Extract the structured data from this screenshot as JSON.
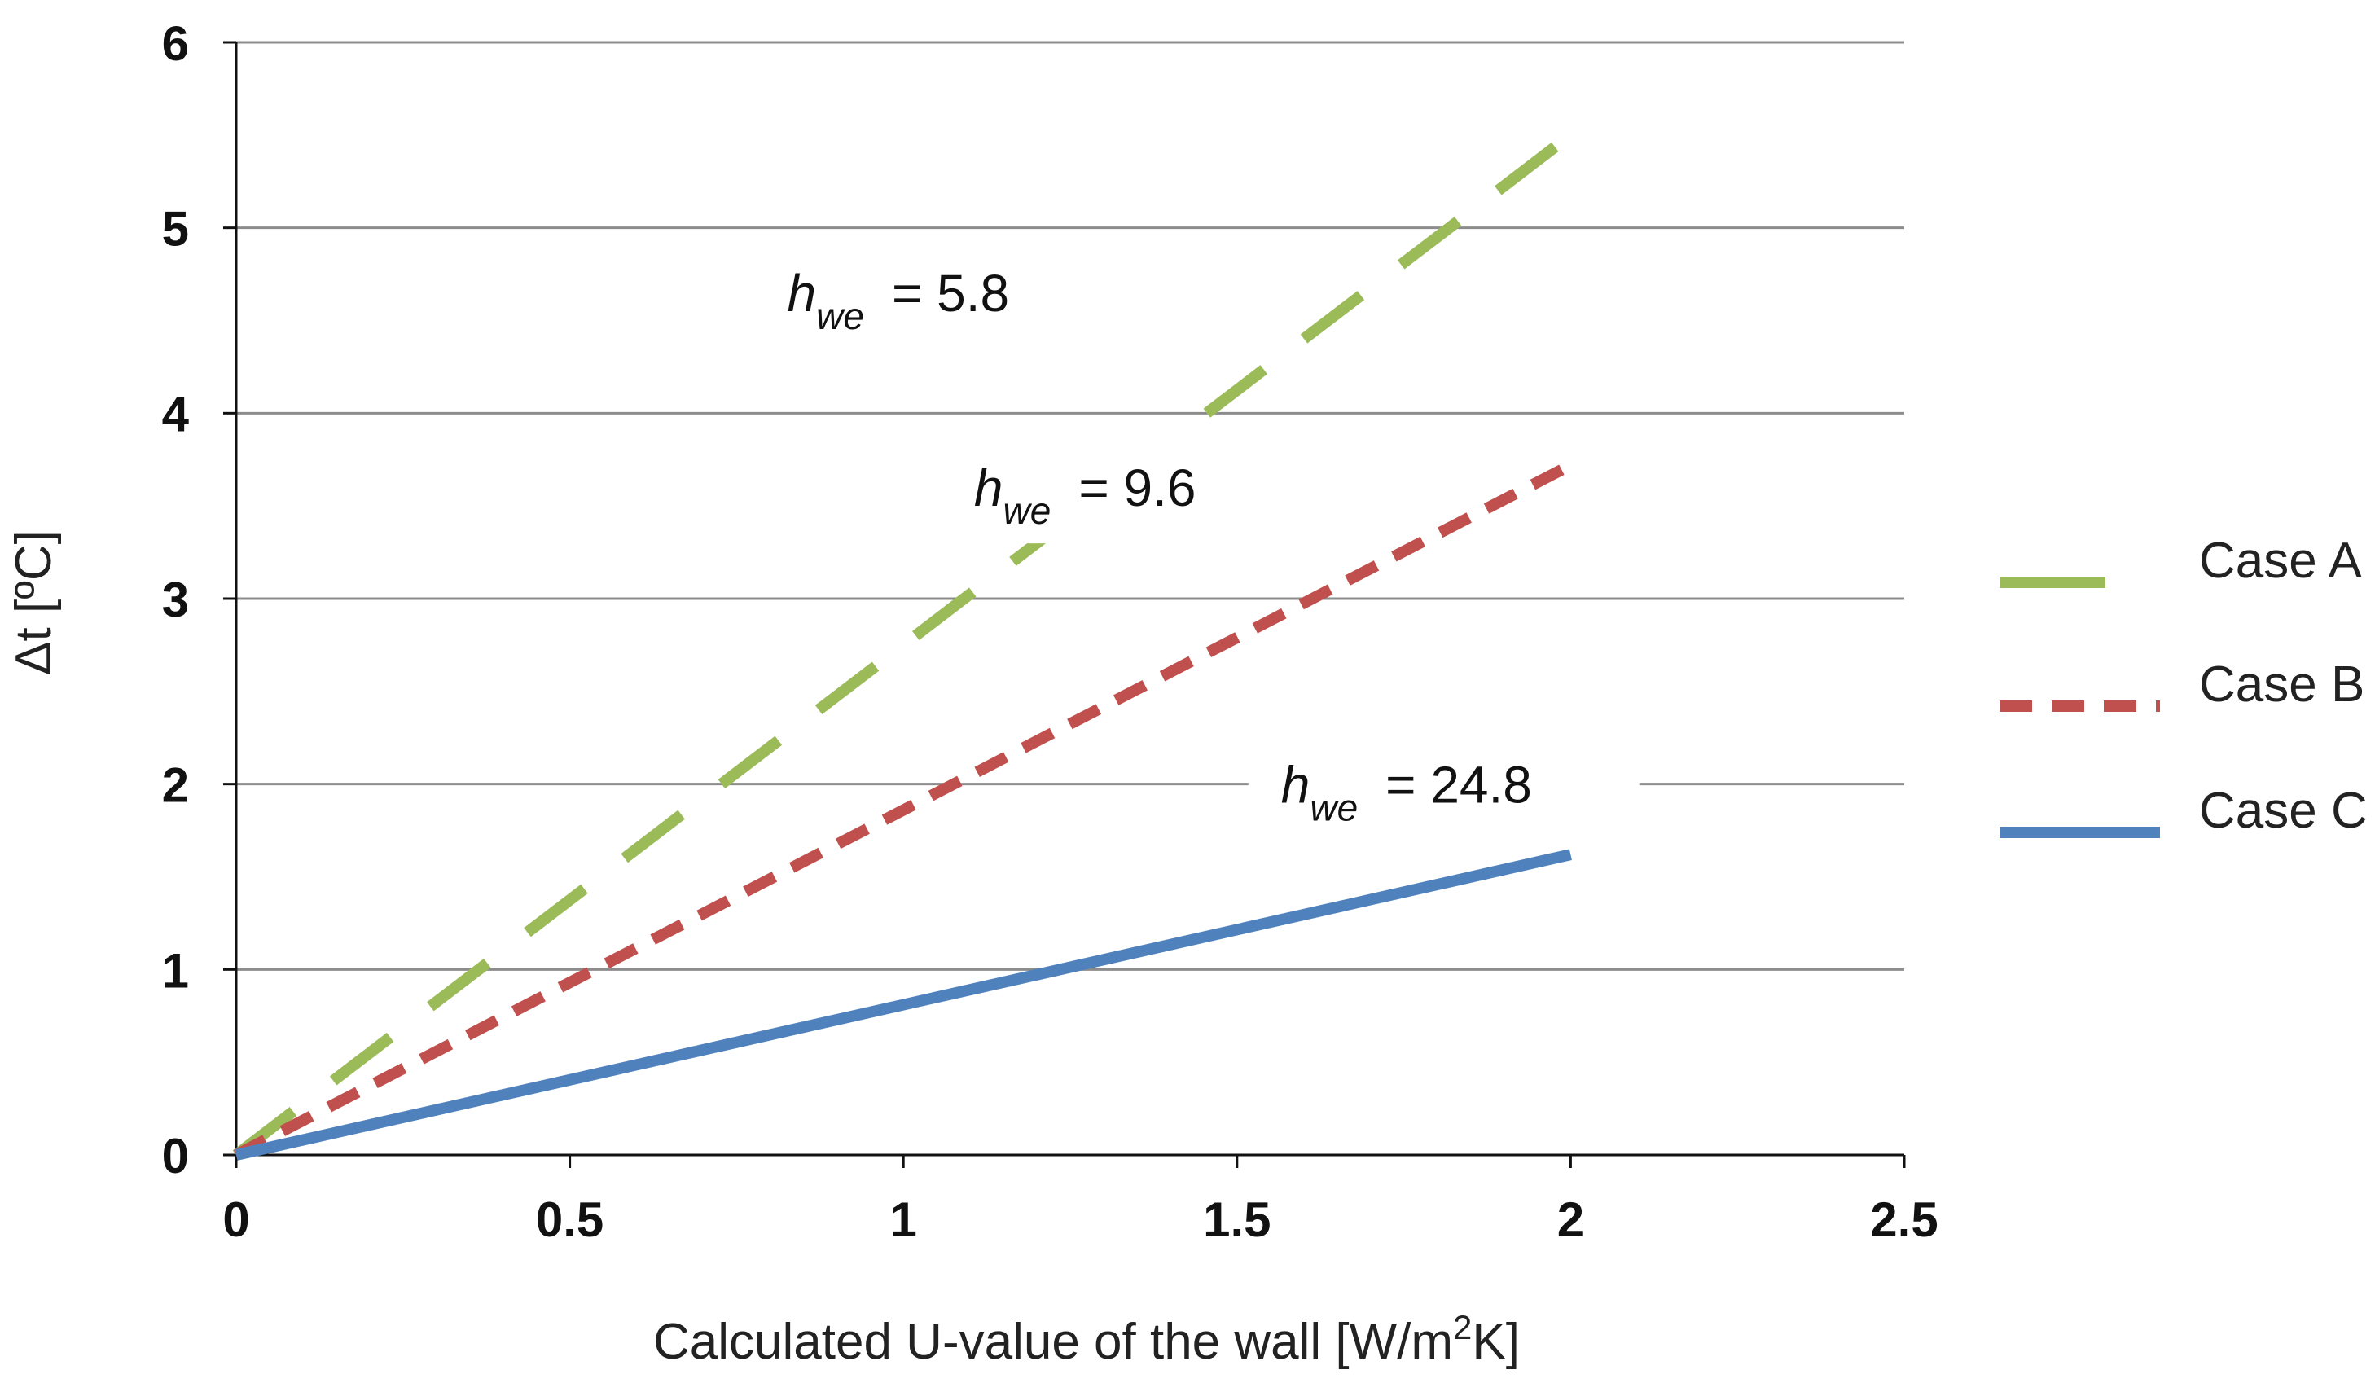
{
  "chart_data": {
    "type": "line",
    "title": "",
    "xlabel": "Calculated U-value of the wall [W/m2K]",
    "xlabel_main": "Calculated U-value of the wall [W/m",
    "xlabel_sup": "2",
    "xlabel_tail": "K]",
    "ylabel": "Δt [ºC]",
    "xlim": [
      0,
      2.5
    ],
    "ylim": [
      0,
      6
    ],
    "xticks": [
      0,
      0.5,
      1,
      1.5,
      2,
      2.5
    ],
    "xtick_labels": [
      "0",
      "0.5",
      "1",
      "1.5",
      "2",
      "2.5"
    ],
    "yticks": [
      0,
      1,
      2,
      3,
      4,
      5,
      6
    ],
    "ytick_labels": [
      "0",
      "1",
      "2",
      "3",
      "4",
      "5",
      "6"
    ],
    "grid": "horizontal",
    "legend_position": "right",
    "series": [
      {
        "name": "Case A",
        "color": "#9BBB59",
        "style": "long-dash",
        "x": [
          0,
          2
        ],
        "y": [
          0,
          5.5
        ]
      },
      {
        "name": "Case B",
        "color": "#C0504D",
        "style": "short-dash",
        "x": [
          0,
          2
        ],
        "y": [
          0,
          3.72
        ]
      },
      {
        "name": "Case C",
        "color": "#4F81BD",
        "style": "solid",
        "x": [
          0,
          2
        ],
        "y": [
          0,
          1.62
        ]
      }
    ],
    "annotations": [
      {
        "symbol": "h",
        "subscript": "we",
        "text": "= 5.8",
        "x": 1.07,
        "y": 4.55
      },
      {
        "symbol": "h",
        "subscript": "we",
        "text": "= 9.6",
        "x": 1.35,
        "y": 3.5
      },
      {
        "symbol": "h",
        "subscript": "we",
        "text": "= 24.8",
        "x": 1.81,
        "y": 1.9
      }
    ]
  }
}
